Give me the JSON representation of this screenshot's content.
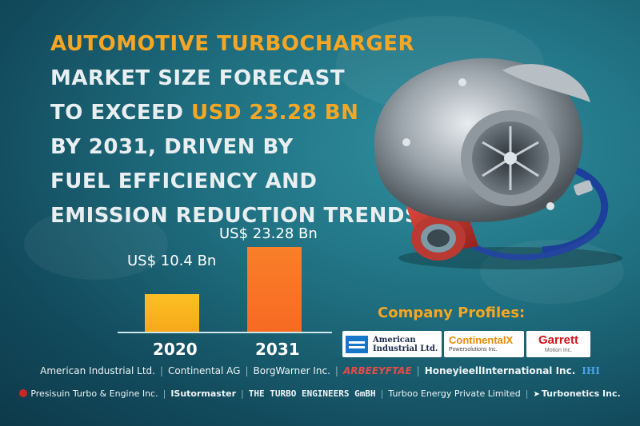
{
  "headline": {
    "line1": "AUTOMOTIVE TURBOCHARGER",
    "line2": "MARKET SIZE FORECAST",
    "line3_prefix": "TO EXCEED ",
    "line3_value": "USD 23.28 BN",
    "line4": "BY 2031, DRIVEN BY",
    "line5": "FUEL EFFICIENCY AND",
    "line6": "EMISSION REDUCTION TRENDS"
  },
  "chart_data": {
    "type": "bar",
    "categories": [
      "2020",
      "2031"
    ],
    "values": [
      10.4,
      23.28
    ],
    "value_labels": [
      "US$ 10.4 Bn",
      "US$ 23.28 Bn"
    ],
    "colors": [
      "#fbbf24",
      "#f97f2a"
    ],
    "ylim": [
      0,
      27
    ],
    "grid": false
  },
  "profiles": {
    "title": "Company Profiles:",
    "logos": {
      "ail_line1": "American",
      "ail_line2": "Industrial Ltd.",
      "continental_name": "ContinentalX",
      "continental_sub": "Powersolutions Inc.",
      "garrett_name": "Garrett",
      "garrett_sub": "Motion Inc."
    }
  },
  "companies_row1": [
    "American Industrial Ltd.",
    "Continental AG",
    "BorgWarner Inc.",
    "ARBEEYFTAE",
    "HoneyieellInternational Inc.",
    "IHI"
  ],
  "companies_row2": [
    "Presisuin Turbo & Engine Inc.",
    "ISutormaster",
    "THE TURBO ENGINEERS GmBH",
    "Turboo Energy Private Limited",
    "Turbonetics Inc."
  ],
  "colors": {
    "accent": "#f6a623",
    "headline": "#e9eef0",
    "background": "#1f6f80"
  }
}
